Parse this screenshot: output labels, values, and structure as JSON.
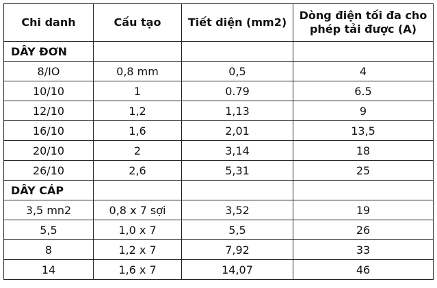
{
  "table": {
    "header": [
      "Chi danh",
      "Cấu tạo",
      "Tiết diện (mm2)",
      "Dòng điện tối đa cho phép tải được (A)"
    ],
    "sections": [
      {
        "title": "DÂY ĐƠN",
        "rows": [
          [
            "8/IO",
            "0,8 mm",
            "0,5",
            "4"
          ],
          [
            "10/10",
            "1",
            "0.79",
            "6.5"
          ],
          [
            "12/10",
            "1,2",
            "1,13",
            "9"
          ],
          [
            "16/10",
            "1,6",
            "2,01",
            "13,5"
          ],
          [
            "20/10",
            "2",
            "3,14",
            "18"
          ],
          [
            "26/10",
            "2,6",
            "5,31",
            "25"
          ]
        ]
      },
      {
        "title": "DÂY CÁP",
        "rows": [
          [
            "3,5 mn2",
            "0,8 x 7 sợi",
            "3,52",
            "19"
          ],
          [
            "5,5",
            "1,0 x 7",
            "5,5",
            "26"
          ],
          [
            "8",
            "1,2 x 7",
            "7,92",
            "33"
          ],
          [
            "14",
            "1,6 x 7",
            "14,07",
            "46"
          ]
        ]
      }
    ]
  }
}
